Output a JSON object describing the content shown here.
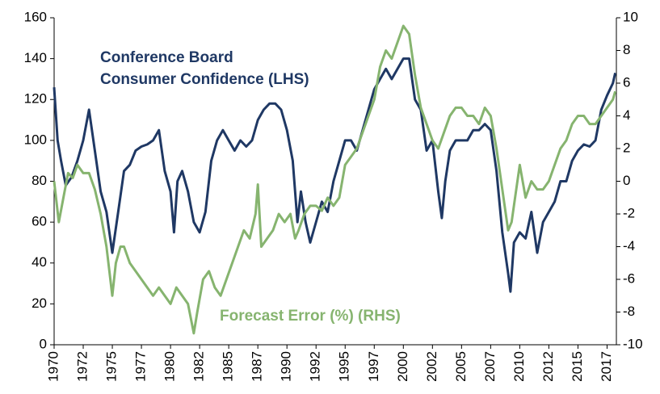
{
  "chart_data": {
    "type": "line",
    "xlim": [
      1970,
      2018.3
    ],
    "xticks": [
      {
        "value": 1970,
        "label": "1970"
      },
      {
        "value": 1972.5,
        "label": "1972"
      },
      {
        "value": 1975,
        "label": "1975"
      },
      {
        "value": 1977.5,
        "label": "1977"
      },
      {
        "value": 1980,
        "label": "1980"
      },
      {
        "value": 1982.5,
        "label": "1982"
      },
      {
        "value": 1985,
        "label": "1985"
      },
      {
        "value": 1987.5,
        "label": "1987"
      },
      {
        "value": 1990,
        "label": "1990"
      },
      {
        "value": 1992.5,
        "label": "1992"
      },
      {
        "value": 1995,
        "label": "1995"
      },
      {
        "value": 1997.5,
        "label": "1997"
      },
      {
        "value": 2000,
        "label": "2000"
      },
      {
        "value": 2002.5,
        "label": "2002"
      },
      {
        "value": 2005,
        "label": "2005"
      },
      {
        "value": 2007.5,
        "label": "2007"
      },
      {
        "value": 2010,
        "label": "2010"
      },
      {
        "value": 2012.5,
        "label": "2012"
      },
      {
        "value": 2015,
        "label": "2015"
      },
      {
        "value": 2017.5,
        "label": "2017"
      }
    ],
    "ylim": [
      0,
      160
    ],
    "yticks": [
      0,
      20,
      40,
      60,
      80,
      100,
      120,
      140,
      160
    ],
    "y2lim": [
      -10,
      10
    ],
    "y2ticks": [
      -10,
      -8,
      -6,
      -4,
      -2,
      0,
      2,
      4,
      6,
      8,
      10
    ],
    "series": [
      {
        "name": "Conference Board\nConsumer Confidence (LHS)",
        "color": "#1f3864",
        "axis": "y",
        "x": [
          1970.0,
          1970.3,
          1970.6,
          1971.0,
          1971.5,
          1972.0,
          1972.5,
          1973.0,
          1973.5,
          1974.0,
          1974.5,
          1975.0,
          1975.5,
          1976.0,
          1976.5,
          1977.0,
          1977.5,
          1978.0,
          1978.5,
          1979.0,
          1979.5,
          1980.0,
          1980.3,
          1980.6,
          1981.0,
          1981.5,
          1982.0,
          1982.5,
          1983.0,
          1983.5,
          1984.0,
          1984.5,
          1985.0,
          1985.5,
          1986.0,
          1986.5,
          1987.0,
          1987.5,
          1988.0,
          1988.5,
          1989.0,
          1989.5,
          1990.0,
          1990.5,
          1990.9,
          1991.2,
          1991.6,
          1992.0,
          1992.5,
          1993.0,
          1993.5,
          1994.0,
          1994.5,
          1995.0,
          1995.5,
          1996.0,
          1996.5,
          1997.0,
          1997.5,
          1998.0,
          1998.5,
          1999.0,
          1999.5,
          2000.0,
          2000.5,
          2001.0,
          2001.5,
          2002.0,
          2002.5,
          2003.0,
          2003.3,
          2003.6,
          2004.0,
          2004.5,
          2005.0,
          2005.5,
          2006.0,
          2006.5,
          2007.0,
          2007.5,
          2008.0,
          2008.5,
          2009.0,
          2009.2,
          2009.5,
          2010.0,
          2010.5,
          2011.0,
          2011.5,
          2012.0,
          2012.5,
          2013.0,
          2013.5,
          2014.0,
          2014.5,
          2015.0,
          2015.5,
          2016.0,
          2016.5,
          2017.0,
          2017.5,
          2018.0,
          2018.2
        ],
        "values": [
          126,
          100,
          90,
          78,
          82,
          90,
          100,
          115,
          95,
          75,
          65,
          45,
          65,
          85,
          88,
          95,
          97,
          98,
          100,
          105,
          85,
          75,
          55,
          80,
          85,
          75,
          60,
          55,
          65,
          90,
          100,
          105,
          100,
          95,
          100,
          97,
          100,
          110,
          115,
          118,
          118,
          115,
          105,
          90,
          60,
          75,
          60,
          50,
          60,
          70,
          65,
          80,
          90,
          100,
          100,
          95,
          105,
          115,
          125,
          130,
          135,
          130,
          135,
          140,
          140,
          120,
          115,
          95,
          100,
          75,
          62,
          80,
          95,
          100,
          100,
          100,
          105,
          105,
          108,
          105,
          85,
          55,
          35,
          26,
          50,
          55,
          52,
          65,
          45,
          60,
          65,
          70,
          80,
          80,
          90,
          95,
          98,
          97,
          100,
          115,
          122,
          128,
          133
        ]
      },
      {
        "name": "Forecast Error (%) (RHS)",
        "color": "#86b46f",
        "axis": "y2",
        "x": [
          1970.0,
          1970.4,
          1970.8,
          1971.2,
          1971.6,
          1972.0,
          1972.5,
          1973.0,
          1973.5,
          1974.0,
          1974.5,
          1975.0,
          1975.3,
          1975.7,
          1976.0,
          1976.5,
          1977.0,
          1977.5,
          1978.0,
          1978.5,
          1979.0,
          1979.5,
          1980.0,
          1980.5,
          1981.0,
          1981.5,
          1982.0,
          1982.3,
          1982.8,
          1983.3,
          1983.8,
          1984.3,
          1984.8,
          1985.3,
          1985.8,
          1986.3,
          1986.8,
          1987.3,
          1987.5,
          1987.8,
          1988.3,
          1988.8,
          1989.3,
          1989.8,
          1990.3,
          1990.7,
          1991.0,
          1991.5,
          1992.0,
          1992.5,
          1993.0,
          1993.5,
          1994.0,
          1994.5,
          1995.0,
          1995.5,
          1996.0,
          1996.5,
          1997.0,
          1997.5,
          1998.0,
          1998.5,
          1999.0,
          1999.5,
          2000.0,
          2000.5,
          2001.0,
          2001.5,
          2002.0,
          2002.5,
          2003.0,
          2003.5,
          2004.0,
          2004.5,
          2005.0,
          2005.5,
          2006.0,
          2006.5,
          2007.0,
          2007.5,
          2008.0,
          2008.5,
          2009.0,
          2009.3,
          2009.6,
          2010.0,
          2010.5,
          2011.0,
          2011.5,
          2012.0,
          2012.5,
          2013.0,
          2013.5,
          2014.0,
          2014.5,
          2015.0,
          2015.5,
          2016.0,
          2016.5,
          2017.0,
          2017.5,
          2018.0,
          2018.2
        ],
        "values": [
          0,
          -2.5,
          -1,
          0.5,
          0.2,
          1,
          0.5,
          0.5,
          -0.5,
          -2,
          -4,
          -7,
          -5,
          -4,
          -4,
          -5,
          -5.5,
          -6,
          -6.5,
          -7,
          -6.5,
          -7,
          -7.5,
          -6.5,
          -7,
          -7.5,
          -9.3,
          -8,
          -6,
          -5.5,
          -6.5,
          -7,
          -6,
          -5,
          -4,
          -3,
          -3.5,
          -2,
          -0.2,
          -4,
          -3.5,
          -3,
          -2,
          -2.5,
          -2,
          -3.5,
          -3,
          -2,
          -1.5,
          -1.5,
          -1.8,
          -1,
          -1.5,
          -1,
          1,
          1.5,
          2,
          3,
          4,
          5,
          7,
          8,
          7.5,
          8.5,
          9.5,
          9,
          6.5,
          4.5,
          3.5,
          2.5,
          2,
          3,
          4,
          4.5,
          4.5,
          4,
          4,
          3.5,
          4.5,
          4,
          2,
          -0.5,
          -3,
          -2.5,
          -1,
          1,
          -1,
          0,
          -0.5,
          -0.5,
          0,
          1,
          2,
          2.5,
          3.5,
          4,
          4,
          3.5,
          3.5,
          4,
          4.5,
          5,
          5.5
        ]
      }
    ]
  }
}
